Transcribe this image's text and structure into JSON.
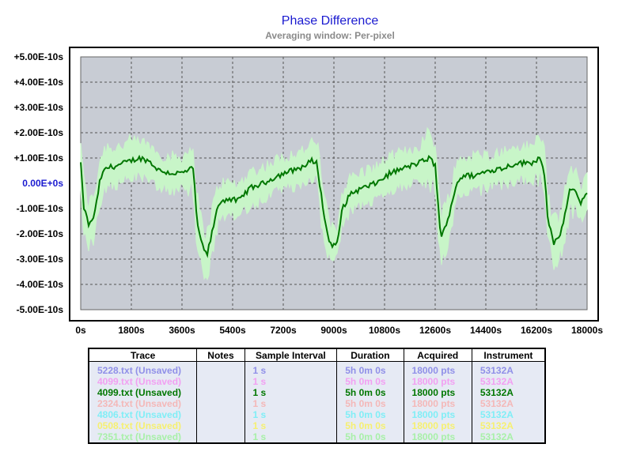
{
  "chart_data": {
    "type": "line",
    "title": "Phase Difference",
    "subtitle": "Averaging window: Per-pixel",
    "xlim": [
      0,
      18000
    ],
    "ylim": [
      -5e-10,
      5e-10
    ],
    "grid": true,
    "x_ticks": [
      "0s",
      "1800s",
      "3600s",
      "5400s",
      "7200s",
      "9000s",
      "10800s",
      "12600s",
      "14400s",
      "16200s",
      "18000s"
    ],
    "y_ticks": [
      "+5.00E-10s",
      "+4.00E-10s",
      "+3.00E-10s",
      "+2.00E-10s",
      "+1.00E-10s",
      "0.00E+0s",
      "-1.00E-10s",
      "-2.00E-10s",
      "-3.00E-10s",
      "-4.00E-10s",
      "-5.00E-10s"
    ],
    "series": [
      {
        "color": "#007700",
        "band_color": "#c8f5c8",
        "x": [
          0,
          100,
          300,
          500,
          700,
          900,
          1300,
          1800,
          2100,
          2400,
          2800,
          3200,
          3600,
          4000,
          4100,
          4200,
          4400,
          4500,
          4700,
          4900,
          5200,
          5600,
          6000,
          6500,
          7000,
          7500,
          8000,
          8200,
          8400,
          8600,
          8800,
          8900,
          9100,
          9300,
          9600,
          10000,
          10500,
          11000,
          11500,
          12000,
          12200,
          12400,
          12600,
          12700,
          12800,
          13000,
          13200,
          13400,
          13600,
          14000,
          14500,
          15000,
          15500,
          16000,
          16300,
          16400,
          16500,
          16600,
          16800,
          17000,
          17200,
          17400,
          17600,
          17800,
          18000
        ],
        "values": [
          8e-11,
          -9e-11,
          -1.7e-10,
          -1.2e-10,
          2e-11,
          6e-11,
          7e-11,
          9e-11,
          1e-10,
          9e-11,
          5e-11,
          4e-11,
          4e-11,
          6e-11,
          -1e-10,
          -2e-10,
          -2.7e-10,
          -2.8e-10,
          -1.8e-10,
          -8e-11,
          -6e-11,
          -7e-11,
          -2e-11,
          0.0,
          3e-11,
          5e-11,
          7e-11,
          9e-11,
          8e-11,
          -9e-11,
          -2.2e-10,
          -2.4e-10,
          -2.5e-10,
          -1e-10,
          -4e-11,
          -2e-11,
          0.0,
          4e-11,
          6e-11,
          8e-11,
          9e-11,
          1e-10,
          7e-11,
          -8e-11,
          -2.1e-10,
          -1.7e-10,
          -7e-11,
          1e-11,
          3e-11,
          3e-11,
          5e-11,
          6e-11,
          8e-11,
          8e-11,
          1e-10,
          9e-11,
          2e-11,
          -1.3e-10,
          -2.4e-10,
          -2.2e-10,
          -1.3e-10,
          -2e-11,
          -4e-11,
          -8e-11,
          -3e-11
        ],
        "band": [
          9e-11,
          9e-11,
          8e-11,
          8e-11,
          8e-11,
          8e-11,
          7e-11,
          7e-11,
          6e-11,
          6e-11,
          6e-11,
          6e-11,
          6e-11,
          8e-11,
          9e-11,
          8e-11,
          8e-11,
          8e-11,
          8e-11,
          7e-11,
          6e-11,
          6e-11,
          6e-11,
          6e-11,
          6e-11,
          6e-11,
          6e-11,
          6e-11,
          8e-11,
          9e-11,
          7e-11,
          6e-11,
          6e-11,
          7e-11,
          6e-11,
          6e-11,
          6e-11,
          6e-11,
          6e-11,
          6e-11,
          8e-11,
          9e-11,
          9e-11,
          9e-11,
          8e-11,
          8e-11,
          8e-11,
          7e-11,
          7e-11,
          7e-11,
          6e-11,
          6e-11,
          6e-11,
          6e-11,
          8e-11,
          9e-11,
          9e-11,
          8e-11,
          8e-11,
          8e-11,
          8e-11,
          8e-11,
          7e-11,
          7e-11,
          6e-11
        ]
      }
    ]
  },
  "table": {
    "columns": [
      "Trace",
      "Notes",
      "Sample Interval",
      "Duration",
      "Acquired",
      "Instrument"
    ],
    "rows": [
      {
        "trace": "5228.txt (Unsaved)",
        "notes": "",
        "interval": "1 s",
        "duration": "5h 0m 0s",
        "acquired": "18000 pts",
        "instrument": "53132A",
        "color": "#9090e8"
      },
      {
        "trace": "4099.txt (Unsaved)",
        "notes": "",
        "interval": "1 s",
        "duration": "5h 0m 0s",
        "acquired": "18000 pts",
        "instrument": "53132A",
        "color": "#f2a0f2"
      },
      {
        "trace": "4099.txt (Unsaved)",
        "notes": "",
        "interval": "1 s",
        "duration": "5h 0m 0s",
        "acquired": "18000 pts",
        "instrument": "53132A",
        "color": "#007700"
      },
      {
        "trace": "2324.txt (Unsaved)",
        "notes": "",
        "interval": "1 s",
        "duration": "5h 0m 0s",
        "acquired": "18000 pts",
        "instrument": "53132A",
        "color": "#f4b8b8"
      },
      {
        "trace": "4806.txt (Unsaved)",
        "notes": "",
        "interval": "1 s",
        "duration": "5h 0m 0s",
        "acquired": "18000 pts",
        "instrument": "53132A",
        "color": "#80eef6"
      },
      {
        "trace": "0508.txt (Unsaved)",
        "notes": "",
        "interval": "1 s",
        "duration": "5h 0m 0s",
        "acquired": "18000 pts",
        "instrument": "53132A",
        "color": "#f6f070"
      },
      {
        "trace": "7351.txt (Unsaved)",
        "notes": "",
        "interval": "1 s",
        "duration": "5h 0m 0s",
        "acquired": "18000 pts",
        "instrument": "53132A",
        "color": "#a8f0a8"
      }
    ]
  }
}
